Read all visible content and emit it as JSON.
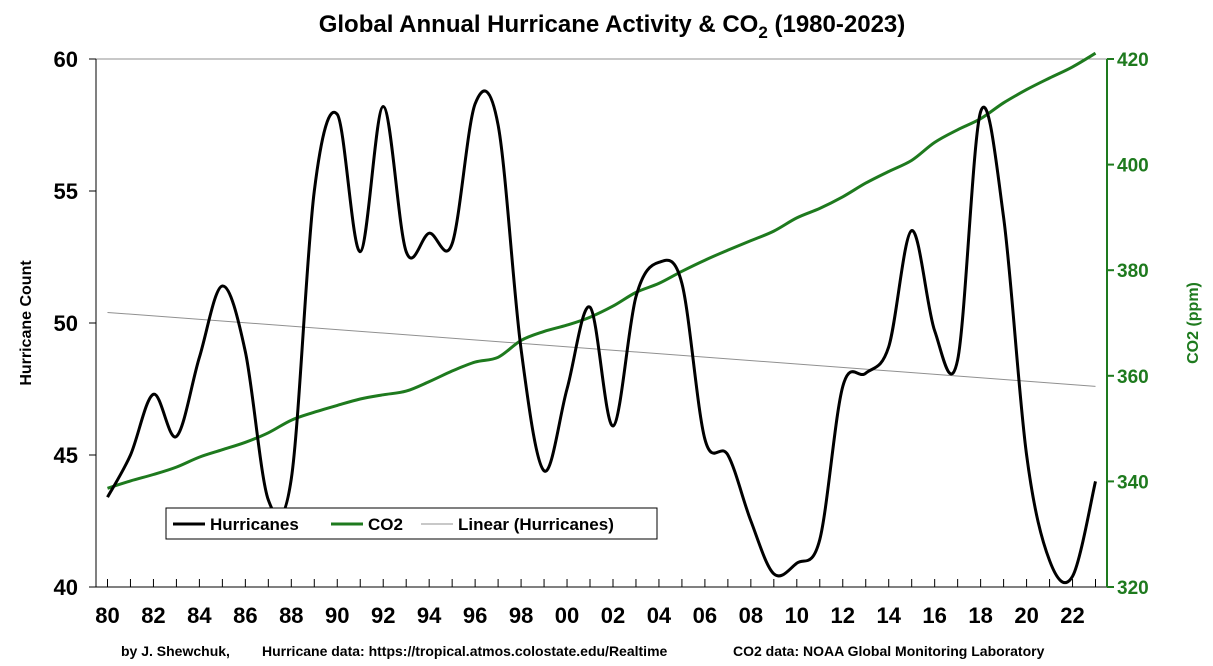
{
  "chart_data": {
    "type": "line",
    "title": "Global Annual Hurricane Activity & CO2 (1980-2023)",
    "title_parts": {
      "prefix": "Global Annual Hurricane Activity & CO",
      "sub": "2",
      "suffix": " (1980-2023)"
    },
    "ylabel": "Hurricane Count",
    "y2label": "CO2 (ppm)",
    "ylim": [
      40,
      60
    ],
    "y2lim": [
      320,
      420
    ],
    "yticks": [
      "40",
      "45",
      "50",
      "55",
      "60"
    ],
    "y2ticks": [
      "320",
      "340",
      "360",
      "380",
      "400",
      "420"
    ],
    "x": [
      1980,
      1981,
      1982,
      1983,
      1984,
      1985,
      1986,
      1987,
      1988,
      1989,
      1990,
      1991,
      1992,
      1993,
      1994,
      1995,
      1996,
      1997,
      1998,
      1999,
      2000,
      2001,
      2002,
      2003,
      2004,
      2005,
      2006,
      2007,
      2008,
      2009,
      2010,
      2011,
      2012,
      2013,
      2014,
      2015,
      2016,
      2017,
      2018,
      2019,
      2020,
      2021,
      2022,
      2023
    ],
    "xlim": [
      1979.5,
      2023.5
    ],
    "xtick_labels": [
      "80",
      "82",
      "84",
      "86",
      "88",
      "90",
      "92",
      "94",
      "96",
      "98",
      "00",
      "02",
      "04",
      "06",
      "08",
      "10",
      "12",
      "14",
      "16",
      "18",
      "20",
      "22"
    ],
    "series": [
      {
        "name": "Hurricanes",
        "color": "#000000",
        "axis": "left",
        "values": [
          43.4,
          45.0,
          47.3,
          45.7,
          48.7,
          51.4,
          48.9,
          43.3,
          44.1,
          55.0,
          57.9,
          52.7,
          58.2,
          52.7,
          53.4,
          53.0,
          58.3,
          57.5,
          49.0,
          44.4,
          47.5,
          50.6,
          46.1,
          51.0,
          52.3,
          51.5,
          45.6,
          45.0,
          42.5,
          40.5,
          40.9,
          41.8,
          47.6,
          48.1,
          49.1,
          53.5,
          49.7,
          48.6,
          58.0,
          54.0,
          45.0,
          41.0,
          40.4,
          44.0
        ]
      },
      {
        "name": "CO2",
        "color": "#1e7a1e",
        "axis": "right",
        "values": [
          338.7,
          340.1,
          341.3,
          342.7,
          344.6,
          346.0,
          347.4,
          349.2,
          351.6,
          353.1,
          354.4,
          355.6,
          356.4,
          357.1,
          358.9,
          360.9,
          362.6,
          363.5,
          366.7,
          368.4,
          369.6,
          371.1,
          373.2,
          375.8,
          377.5,
          379.8,
          381.9,
          383.8,
          385.6,
          387.4,
          389.9,
          391.7,
          393.9,
          396.5,
          398.7,
          400.8,
          404.2,
          406.6,
          408.7,
          411.7,
          414.2,
          416.4,
          418.5,
          421.1
        ]
      },
      {
        "name": "Linear (Hurricanes)",
        "color": "#909090",
        "axis": "left",
        "trend": [
          50.4,
          47.6
        ]
      }
    ],
    "legend_position": "bottom-left",
    "grid": false
  },
  "credit": {
    "author": "by J. Shewchuk,",
    "hurricane_source": "Hurricane data: https://tropical.atmos.colostate.edu/Realtime",
    "co2_source": "CO2 data: NOAA Global Monitoring Laboratory"
  }
}
